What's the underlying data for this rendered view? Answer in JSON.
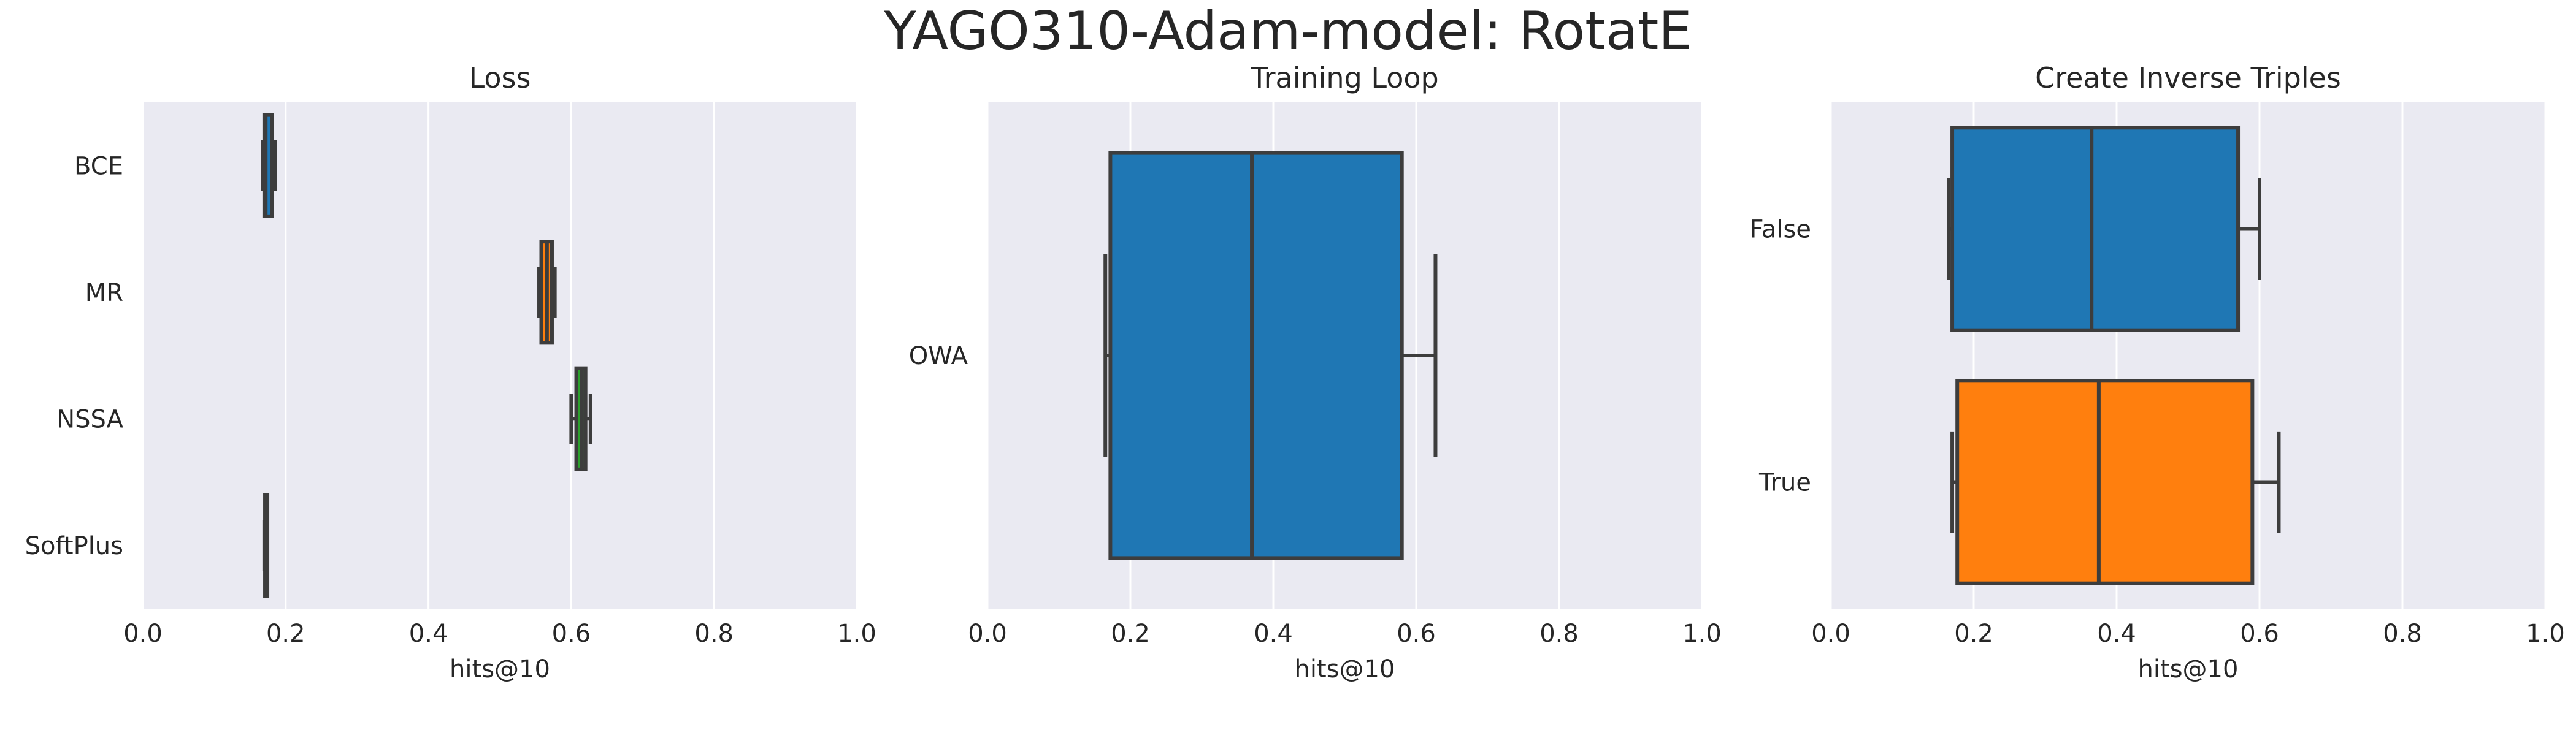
{
  "figure": {
    "title": "YAGO310-Adam-model: RotatE"
  },
  "chart_data": [
    {
      "type": "box",
      "orientation": "horizontal",
      "title": "Loss",
      "xlabel": "hits@10",
      "ylabel": "",
      "xlim": [
        0,
        1
      ],
      "xticks": [
        "0.0",
        "0.2",
        "0.4",
        "0.6",
        "0.8",
        "1.0"
      ],
      "grid": true,
      "categories": [
        "BCE",
        "MR",
        "NSSA",
        "SoftPlus"
      ],
      "boxes": [
        {
          "category": "BCE",
          "whisker_low": 0.168,
          "q1": 0.17,
          "median": 0.172,
          "q3": 0.181,
          "whisker_high": 0.185,
          "color": "#1f77b4"
        },
        {
          "category": "MR",
          "whisker_low": 0.555,
          "q1": 0.558,
          "median": 0.566,
          "q3": 0.573,
          "whisker_high": 0.577,
          "color": "#ff7f0e"
        },
        {
          "category": "NSSA",
          "whisker_low": 0.6,
          "q1": 0.607,
          "median": 0.615,
          "q3": 0.62,
          "whisker_high": 0.627,
          "color": "#2ca02c"
        },
        {
          "category": "SoftPlus",
          "whisker_low": 0.17,
          "q1": 0.171,
          "median": 0.172,
          "q3": 0.173,
          "whisker_high": 0.174,
          "color": "#d62728"
        }
      ]
    },
    {
      "type": "box",
      "orientation": "horizontal",
      "title": "Training Loop",
      "xlabel": "hits@10",
      "ylabel": "",
      "xlim": [
        0,
        1
      ],
      "xticks": [
        "0.0",
        "0.2",
        "0.4",
        "0.6",
        "0.8",
        "1.0"
      ],
      "grid": true,
      "categories": [
        "OWA"
      ],
      "boxes": [
        {
          "category": "OWA",
          "whisker_low": 0.165,
          "q1": 0.172,
          "median": 0.37,
          "q3": 0.58,
          "whisker_high": 0.627,
          "color": "#1f77b4"
        }
      ]
    },
    {
      "type": "box",
      "orientation": "horizontal",
      "title": "Create Inverse Triples",
      "xlabel": "hits@10",
      "ylabel": "",
      "xlim": [
        0,
        1
      ],
      "xticks": [
        "0.0",
        "0.2",
        "0.4",
        "0.6",
        "0.8",
        "1.0"
      ],
      "grid": true,
      "categories": [
        "False",
        "True"
      ],
      "boxes": [
        {
          "category": "False",
          "whisker_low": 0.165,
          "q1": 0.17,
          "median": 0.365,
          "q3": 0.57,
          "whisker_high": 0.6,
          "color": "#1f77b4"
        },
        {
          "category": "True",
          "whisker_low": 0.17,
          "q1": 0.177,
          "median": 0.375,
          "q3": 0.59,
          "whisker_high": 0.627,
          "color": "#ff7f0e"
        }
      ]
    }
  ]
}
